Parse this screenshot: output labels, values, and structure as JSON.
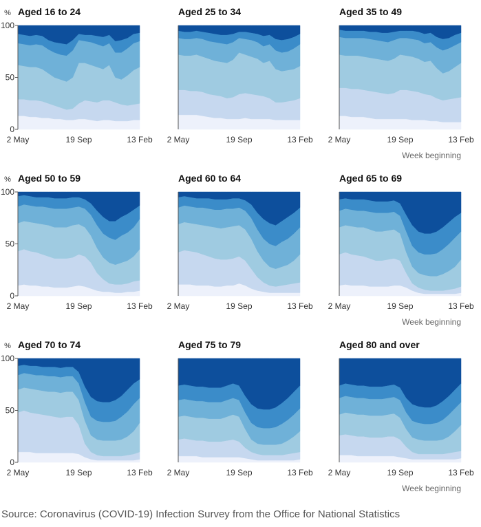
{
  "chart_data": {
    "type": "area",
    "stacked": true,
    "ylabel": "%",
    "xlabel": "Week beginning",
    "ylim": [
      0,
      100
    ],
    "yticks": [
      "0",
      "50",
      "100"
    ],
    "xticks": [
      "2 May",
      "19 Sep",
      "13 Feb"
    ],
    "colors": [
      "#edf1fb",
      "#c6d8ef",
      "#9fcbe1",
      "#6fb1d8",
      "#3b8cc9",
      "#0d4f9c"
    ],
    "x": [
      0,
      2,
      4,
      6,
      8,
      10,
      12,
      14,
      16,
      18,
      20,
      22,
      24,
      26,
      28,
      30,
      32,
      34,
      36,
      38,
      40
    ],
    "panels": [
      {
        "title": "Aged 16 to 24",
        "bounds": [
          [
            13,
            13,
            12,
            12,
            11,
            11,
            10,
            10,
            9,
            9,
            10,
            10,
            9,
            8,
            9,
            9,
            8,
            8,
            8,
            9,
            9
          ],
          [
            29,
            29,
            28,
            28,
            27,
            25,
            23,
            21,
            19,
            20,
            25,
            28,
            27,
            26,
            28,
            28,
            26,
            24,
            23,
            24,
            25
          ],
          [
            62,
            61,
            60,
            60,
            58,
            54,
            50,
            48,
            46,
            50,
            64,
            64,
            62,
            60,
            58,
            62,
            50,
            48,
            52,
            57,
            60
          ],
          [
            83,
            82,
            81,
            82,
            81,
            77,
            74,
            72,
            71,
            76,
            86,
            85,
            84,
            82,
            80,
            83,
            74,
            74,
            78,
            83,
            85
          ],
          [
            92,
            91,
            90,
            91,
            90,
            86,
            84,
            83,
            82,
            86,
            92,
            91,
            91,
            90,
            89,
            91,
            85,
            86,
            88,
            92,
            93
          ]
        ]
      },
      {
        "title": "Aged 25 to 34",
        "bounds": [
          [
            14,
            14,
            14,
            14,
            13,
            12,
            11,
            11,
            10,
            10,
            10,
            11,
            10,
            10,
            10,
            10,
            9,
            9,
            9,
            9,
            9
          ],
          [
            38,
            38,
            37,
            37,
            36,
            34,
            33,
            32,
            30,
            31,
            34,
            35,
            34,
            33,
            32,
            30,
            26,
            26,
            27,
            28,
            30
          ],
          [
            72,
            71,
            71,
            72,
            70,
            68,
            66,
            65,
            64,
            67,
            74,
            72,
            70,
            68,
            64,
            66,
            58,
            56,
            57,
            58,
            61
          ],
          [
            88,
            87,
            87,
            88,
            87,
            85,
            84,
            83,
            82,
            84,
            88,
            87,
            86,
            84,
            80,
            82,
            76,
            74,
            75,
            78,
            82
          ],
          [
            95,
            94,
            94,
            95,
            94,
            93,
            92,
            91,
            91,
            92,
            94,
            94,
            93,
            92,
            90,
            91,
            87,
            86,
            87,
            89,
            92
          ]
        ]
      },
      {
        "title": "Aged 35 to 49",
        "bounds": [
          [
            13,
            13,
            12,
            12,
            12,
            11,
            10,
            10,
            10,
            10,
            10,
            10,
            9,
            9,
            9,
            8,
            8,
            7,
            7,
            7,
            7
          ],
          [
            40,
            40,
            39,
            39,
            38,
            37,
            36,
            35,
            34,
            35,
            38,
            38,
            37,
            36,
            34,
            33,
            30,
            28,
            29,
            30,
            31
          ],
          [
            72,
            71,
            71,
            71,
            70,
            69,
            68,
            67,
            66,
            68,
            72,
            71,
            70,
            68,
            65,
            66,
            59,
            54,
            56,
            60,
            64
          ],
          [
            89,
            88,
            88,
            88,
            88,
            87,
            86,
            85,
            84,
            86,
            88,
            88,
            87,
            86,
            83,
            84,
            79,
            76,
            78,
            81,
            84
          ],
          [
            96,
            95,
            95,
            95,
            95,
            94,
            94,
            93,
            93,
            94,
            95,
            95,
            95,
            94,
            92,
            93,
            89,
            87,
            88,
            91,
            93
          ]
        ]
      },
      {
        "title": "Aged 50 to 59",
        "bounds": [
          [
            10,
            11,
            10,
            10,
            9,
            9,
            8,
            8,
            8,
            9,
            10,
            9,
            7,
            5,
            4,
            4,
            3,
            3,
            4,
            4,
            5
          ],
          [
            43,
            45,
            43,
            42,
            40,
            38,
            36,
            36,
            36,
            37,
            40,
            38,
            32,
            22,
            16,
            12,
            11,
            11,
            12,
            14,
            15
          ],
          [
            70,
            72,
            71,
            70,
            69,
            68,
            66,
            66,
            66,
            68,
            69,
            66,
            58,
            46,
            37,
            32,
            30,
            32,
            34,
            38,
            45
          ],
          [
            86,
            88,
            87,
            86,
            86,
            85,
            84,
            84,
            84,
            85,
            86,
            84,
            78,
            68,
            60,
            56,
            54,
            58,
            61,
            66,
            74
          ],
          [
            96,
            97,
            96,
            95,
            95,
            95,
            94,
            94,
            94,
            95,
            95,
            93,
            89,
            82,
            76,
            72,
            72,
            76,
            79,
            83,
            87
          ]
        ]
      },
      {
        "title": "Aged 60 to 64",
        "bounds": [
          [
            11,
            11,
            11,
            10,
            10,
            10,
            9,
            9,
            10,
            10,
            12,
            10,
            7,
            5,
            4,
            3,
            3,
            3,
            3,
            3,
            3
          ],
          [
            42,
            44,
            43,
            42,
            40,
            38,
            36,
            35,
            35,
            36,
            38,
            34,
            26,
            18,
            13,
            10,
            9,
            10,
            11,
            12,
            13
          ],
          [
            69,
            71,
            70,
            69,
            68,
            67,
            66,
            65,
            66,
            67,
            68,
            64,
            55,
            43,
            34,
            28,
            26,
            28,
            30,
            34,
            40
          ],
          [
            85,
            87,
            86,
            85,
            85,
            84,
            83,
            83,
            84,
            84,
            85,
            82,
            75,
            64,
            55,
            50,
            48,
            52,
            55,
            60,
            66
          ],
          [
            95,
            96,
            95,
            94,
            94,
            94,
            93,
            93,
            93,
            94,
            94,
            92,
            88,
            80,
            74,
            70,
            68,
            72,
            76,
            80,
            85
          ]
        ]
      },
      {
        "title": "Aged 65 to 69",
        "bounds": [
          [
            10,
            11,
            10,
            10,
            10,
            9,
            9,
            9,
            9,
            10,
            10,
            8,
            5,
            3,
            2,
            2,
            2,
            2,
            2,
            2,
            3
          ],
          [
            40,
            42,
            40,
            39,
            38,
            36,
            34,
            34,
            35,
            36,
            34,
            22,
            12,
            8,
            6,
            5,
            5,
            5,
            6,
            7,
            9
          ],
          [
            66,
            68,
            67,
            66,
            66,
            64,
            62,
            62,
            63,
            64,
            60,
            42,
            28,
            22,
            20,
            19,
            19,
            21,
            24,
            28,
            35
          ],
          [
            82,
            84,
            83,
            82,
            82,
            81,
            80,
            80,
            80,
            81,
            77,
            62,
            48,
            42,
            40,
            40,
            41,
            45,
            50,
            56,
            62
          ],
          [
            93,
            94,
            93,
            93,
            93,
            92,
            91,
            91,
            91,
            92,
            89,
            78,
            68,
            62,
            60,
            60,
            62,
            66,
            71,
            76,
            80
          ]
        ]
      },
      {
        "title": "Aged 70 to 74",
        "bounds": [
          [
            10,
            10,
            10,
            9,
            9,
            9,
            9,
            9,
            9,
            9,
            8,
            5,
            3,
            2,
            2,
            2,
            2,
            2,
            2,
            2,
            3
          ],
          [
            48,
            50,
            48,
            47,
            46,
            45,
            44,
            43,
            44,
            44,
            36,
            18,
            10,
            7,
            6,
            6,
            6,
            6,
            7,
            8,
            10
          ],
          [
            70,
            72,
            71,
            70,
            69,
            68,
            68,
            67,
            68,
            68,
            60,
            40,
            26,
            22,
            21,
            21,
            21,
            22,
            25,
            30,
            38
          ],
          [
            84,
            86,
            85,
            84,
            84,
            83,
            83,
            82,
            83,
            83,
            76,
            58,
            44,
            40,
            39,
            39,
            40,
            44,
            49,
            56,
            62
          ],
          [
            93,
            94,
            93,
            93,
            92,
            92,
            92,
            91,
            92,
            92,
            87,
            73,
            63,
            59,
            58,
            58,
            60,
            64,
            70,
            76,
            80
          ]
        ]
      },
      {
        "title": "Aged 75 to 79",
        "bounds": [
          [
            6,
            6,
            6,
            6,
            5,
            5,
            5,
            5,
            5,
            5,
            5,
            4,
            3,
            2,
            2,
            2,
            2,
            2,
            2,
            2,
            3
          ],
          [
            22,
            23,
            22,
            21,
            21,
            20,
            20,
            20,
            21,
            22,
            20,
            14,
            10,
            8,
            7,
            7,
            7,
            7,
            8,
            9,
            10
          ],
          [
            44,
            45,
            44,
            43,
            43,
            42,
            42,
            42,
            44,
            46,
            44,
            32,
            22,
            18,
            17,
            17,
            17,
            18,
            21,
            25,
            30
          ],
          [
            60,
            61,
            60,
            59,
            59,
            58,
            58,
            58,
            60,
            62,
            60,
            48,
            38,
            34,
            33,
            33,
            34,
            37,
            41,
            46,
            52
          ],
          [
            74,
            75,
            74,
            73,
            73,
            72,
            72,
            72,
            74,
            76,
            74,
            64,
            56,
            52,
            51,
            51,
            53,
            57,
            62,
            68,
            74
          ]
        ]
      },
      {
        "title": "Aged 80 and over",
        "bounds": [
          [
            7,
            7,
            7,
            6,
            6,
            6,
            6,
            6,
            6,
            6,
            5,
            4,
            3,
            3,
            3,
            3,
            3,
            3,
            3,
            3,
            4
          ],
          [
            26,
            27,
            26,
            25,
            25,
            24,
            24,
            24,
            25,
            25,
            22,
            15,
            10,
            8,
            8,
            8,
            8,
            8,
            9,
            10,
            11
          ],
          [
            46,
            48,
            47,
            46,
            46,
            45,
            45,
            45,
            46,
            47,
            43,
            32,
            24,
            22,
            21,
            21,
            21,
            22,
            25,
            30,
            36
          ],
          [
            62,
            64,
            63,
            62,
            62,
            61,
            61,
            61,
            62,
            63,
            60,
            48,
            40,
            38,
            37,
            37,
            38,
            41,
            46,
            52,
            58
          ],
          [
            74,
            76,
            75,
            74,
            74,
            73,
            73,
            73,
            74,
            75,
            72,
            62,
            56,
            54,
            53,
            53,
            55,
            59,
            64,
            70,
            76
          ]
        ]
      }
    ]
  },
  "footer": {
    "source": "Source: Coronavirus (COVID-19) Infection Survey from the Office for National Statistics"
  }
}
